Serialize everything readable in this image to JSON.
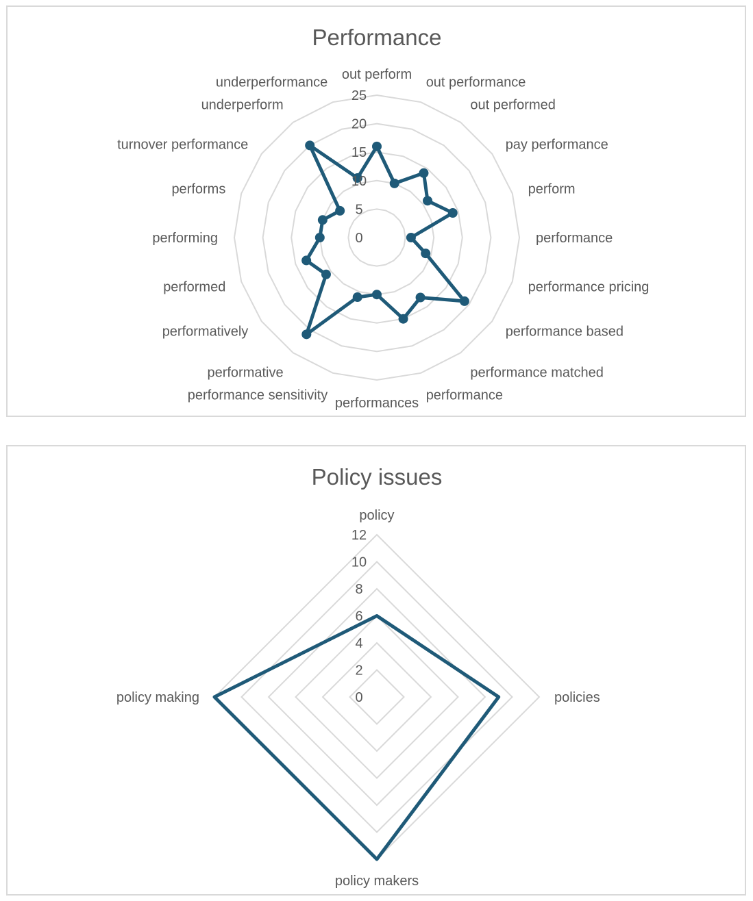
{
  "chart_data": [
    {
      "type": "radar",
      "title": "Performance",
      "categories": [
        "out perform",
        "out performance",
        "out performed",
        "pay performance",
        "perform",
        "performance",
        "performance pricing",
        "performance based",
        "performance matched",
        "performance",
        "performances",
        "performance sensitivity",
        "performative",
        "performatively",
        "performed",
        "performing",
        "performs",
        "turnover performance",
        "underperform",
        "underperformance"
      ],
      "series": [
        {
          "values": [
            16,
            10,
            14,
            11,
            14,
            6,
            9,
            19,
            13,
            15,
            10,
            11,
            21,
            11,
            13,
            10,
            10,
            8,
            20,
            11
          ]
        }
      ],
      "rlim": [
        0,
        25
      ],
      "rticks": [
        0,
        5,
        10,
        15,
        20,
        25
      ],
      "markers": true,
      "grid": true,
      "colors": {
        "series": "#1f5a78",
        "grid": "#d9d9d9",
        "text": "#595959"
      }
    },
    {
      "type": "radar",
      "title": "Policy issues",
      "categories": [
        "policy",
        "policies",
        "policy makers",
        "policy making"
      ],
      "series": [
        {
          "values": [
            6,
            9,
            12,
            12
          ]
        }
      ],
      "rlim": [
        0,
        12
      ],
      "rticks": [
        0,
        2,
        4,
        6,
        8,
        10,
        12
      ],
      "markers": false,
      "grid": true,
      "colors": {
        "series": "#1f5a78",
        "grid": "#d9d9d9",
        "text": "#595959"
      }
    }
  ]
}
